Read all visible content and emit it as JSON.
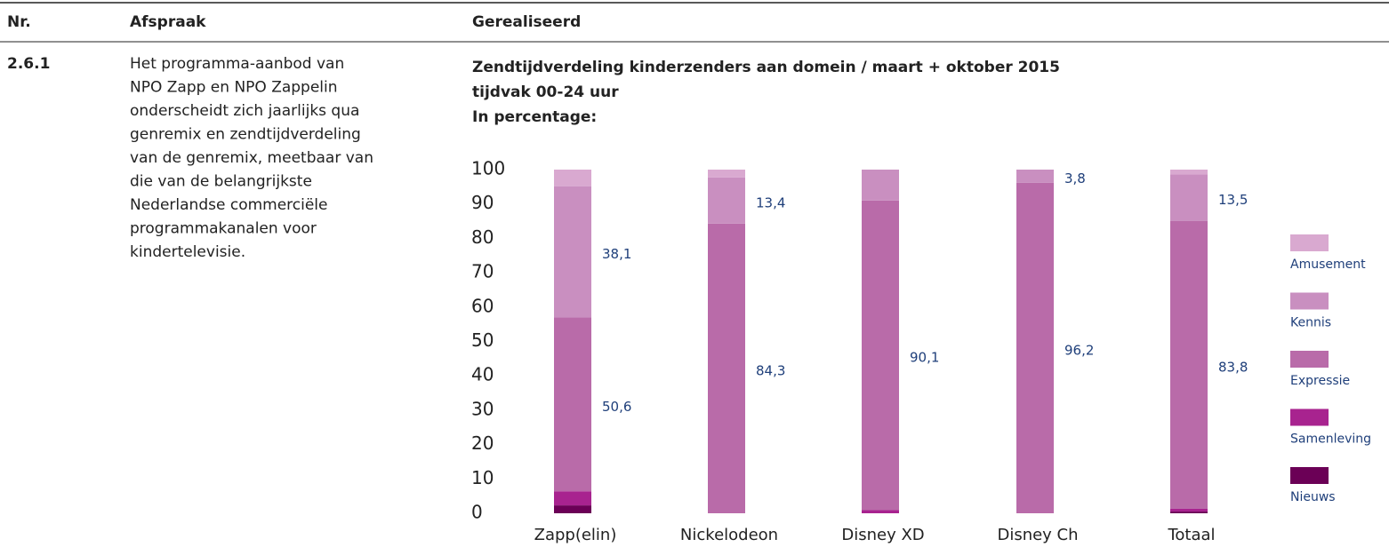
{
  "table": {
    "header": [
      "Nr.",
      "Afspraak",
      "Gerealiseerd"
    ],
    "rows": [
      {
        "nr": "2.6.1",
        "afspraak": [
          "Het programma-aanbod van",
          "NPO Zapp en NPO Zappelin",
          "onderscheidt zich jaarlijks qua",
          "genremix en zendtijdverdeling",
          "van de genremix, meetbaar van",
          "die van de belangrijkste",
          "Nederlandse commerciële",
          "programmakanalen voor",
          "kindertelevisie."
        ]
      }
    ]
  },
  "chart_data": {
    "type": "stacked_bar",
    "title": "Zendtijdverdeling kinderzenders aan domein / maart + oktober 2015",
    "subtitle": "tijdvak 00-24 uur",
    "note": "In percentage:",
    "categories": [
      "Zapp(elin)",
      "Nickelodeon",
      "Disney XD",
      "Disney Ch",
      "Totaal"
    ],
    "series": [
      {
        "name": "Nieuws",
        "color": "#6b0056",
        "values": [
          2.3,
          0,
          0,
          0,
          0.5
        ],
        "value_labels": [
          null,
          null,
          null,
          null,
          null
        ]
      },
      {
        "name": "Samenleving",
        "color": "#a8238f",
        "values": [
          4.1,
          0,
          0.9,
          0,
          0.8
        ],
        "value_labels": [
          null,
          null,
          null,
          null,
          null
        ]
      },
      {
        "name": "Expressie",
        "color": "#b96ba9",
        "values": [
          50.6,
          84.3,
          90.1,
          96.2,
          83.8
        ],
        "value_labels": [
          "50,6",
          "84,3",
          "90,1",
          "96,2",
          "83,8"
        ]
      },
      {
        "name": "Kennis",
        "color": "#c98fc0",
        "values": [
          38.1,
          13.4,
          9.0,
          3.8,
          13.5
        ],
        "value_labels": [
          "38,1",
          "13,4",
          null,
          "3,8",
          "13,5"
        ]
      },
      {
        "name": "Amusement",
        "color": "#d9a9d0",
        "values": [
          4.9,
          2.3,
          0,
          0,
          1.4
        ],
        "value_labels": [
          null,
          null,
          null,
          null,
          null
        ]
      }
    ],
    "ylim": [
      0,
      100
    ],
    "yticks": [
      0,
      10,
      20,
      30,
      40,
      50,
      60,
      70,
      80,
      90,
      100
    ],
    "legend": "right"
  }
}
